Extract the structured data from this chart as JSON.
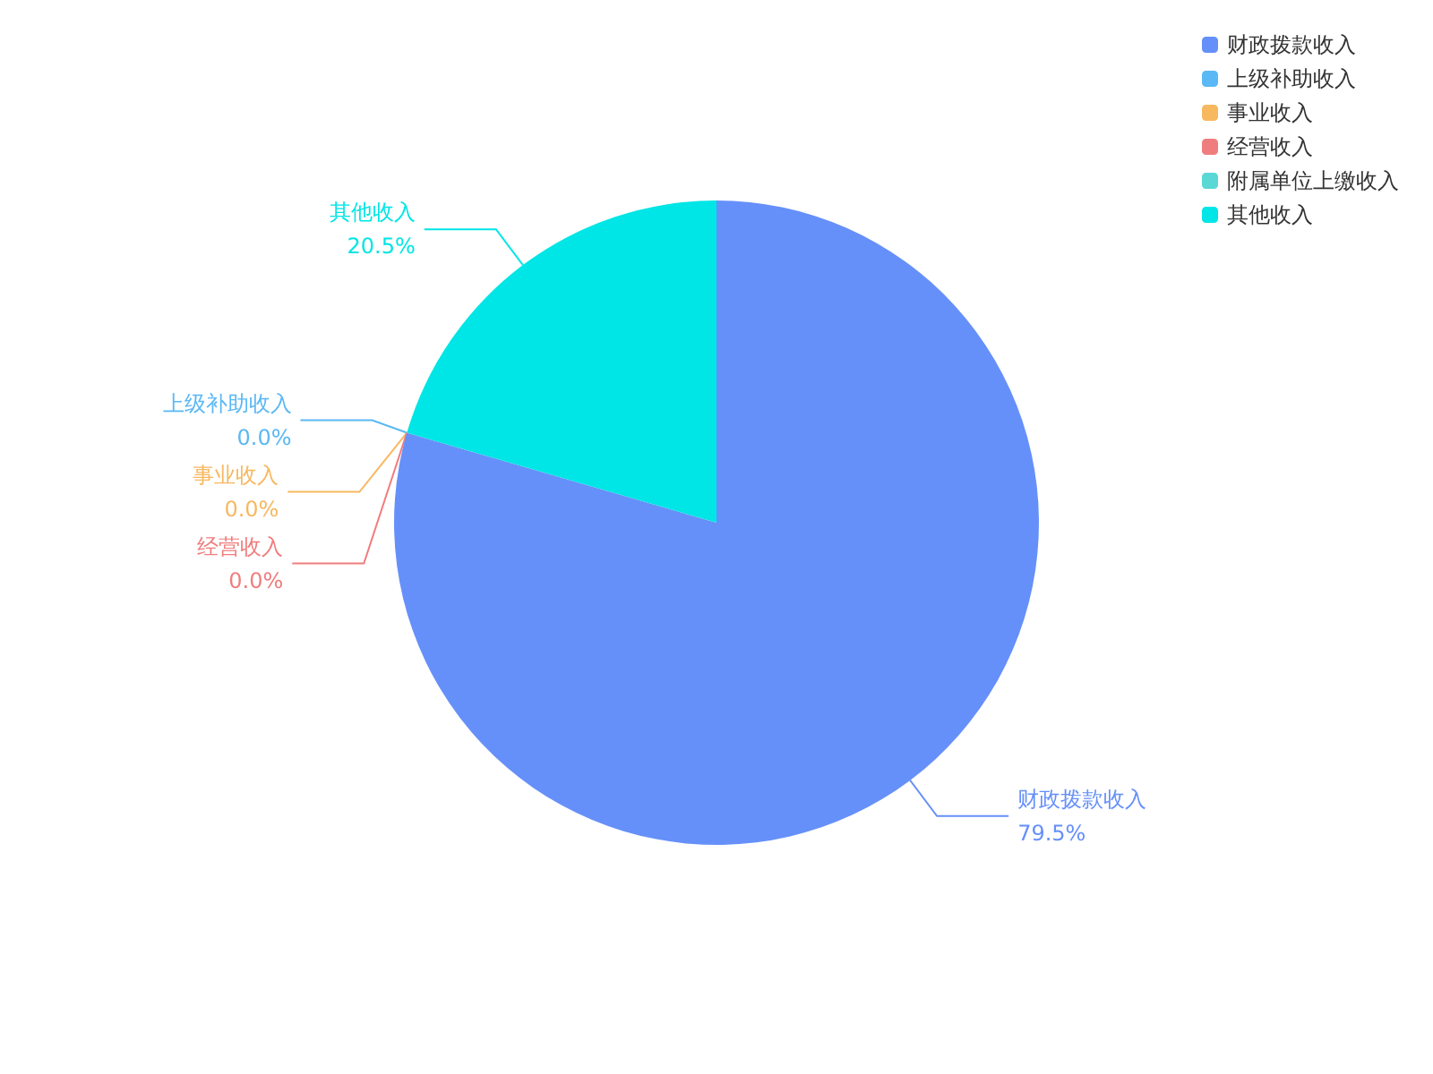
{
  "chart_data": {
    "type": "pie",
    "categories": [
      "财政拨款收入",
      "上级补助收入",
      "事业收入",
      "经营收入",
      "附属单位上缴收入",
      "其他收入"
    ],
    "values": [
      79.5,
      0.0,
      0.0,
      0.0,
      0,
      20.5
    ],
    "value_labels": [
      "79.5%",
      "0.0%",
      "0.0%",
      "0.0%",
      null,
      "20.5%"
    ],
    "colors": [
      "#6690f9",
      "#5ab8f5",
      "#f7b860",
      "#f07d7d",
      "#5ad8d5",
      "#00e5e5"
    ],
    "legend": "top right"
  }
}
